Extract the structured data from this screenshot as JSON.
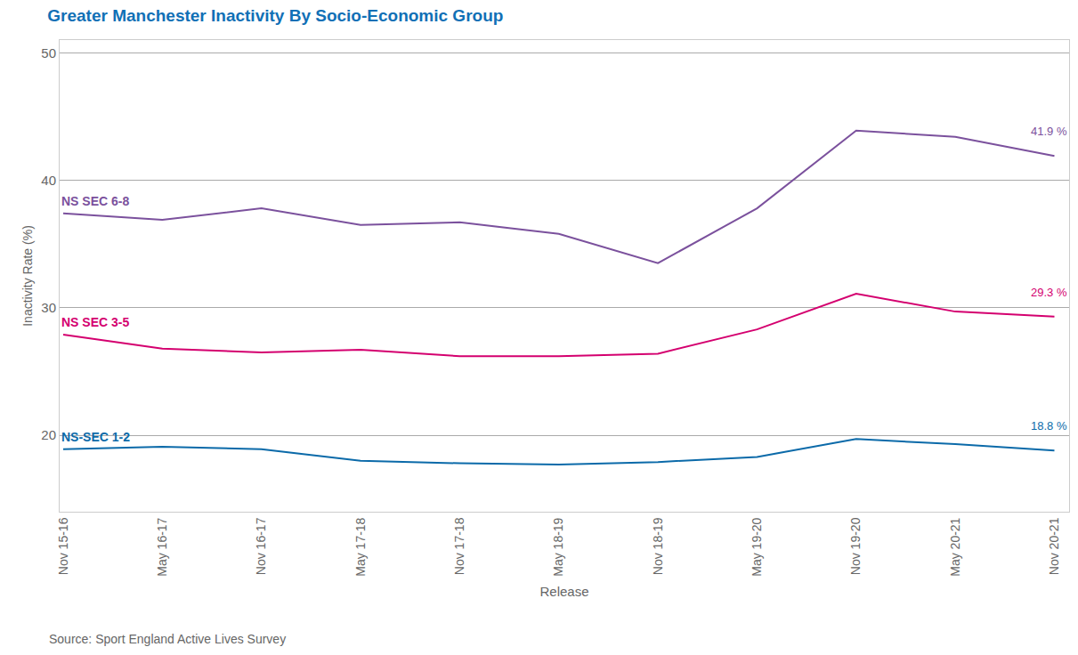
{
  "chart_data": {
    "type": "line",
    "title": "Greater Manchester Inactivity By Socio-Economic Group",
    "x_label": "Release",
    "y_label": "Inactivity Rate (%)",
    "source": "Source: Sport England Active Lives Survey",
    "categories": [
      "Nov 15-16",
      "May 16-17",
      "Nov 16-17",
      "May 17-18",
      "Nov 17-18",
      "May 18-19",
      "Nov 18-19",
      "May 19-20",
      "Nov 19-20",
      "May 20-21",
      "Nov 20-21"
    ],
    "series": [
      {
        "name": "NS SEC 6-8",
        "color": "#7b519d",
        "values": [
          37.4,
          36.9,
          37.8,
          36.5,
          36.7,
          35.8,
          33.5,
          37.8,
          43.9,
          43.4,
          41.9
        ],
        "value_labels": [
          null,
          null,
          null,
          null,
          null,
          null,
          null,
          null,
          null,
          null,
          "41.9 %"
        ]
      },
      {
        "name": "NS SEC 3-5",
        "color": "#d4006f",
        "values": [
          27.9,
          26.8,
          26.5,
          26.7,
          26.2,
          26.2,
          26.4,
          28.3,
          31.1,
          29.7,
          29.3
        ],
        "value_labels": [
          null,
          null,
          null,
          null,
          null,
          null,
          null,
          null,
          null,
          null,
          "29.3 %"
        ]
      },
      {
        "name": "NS-SEC 1-2",
        "color": "#0b6aa9",
        "values": [
          18.9,
          19.1,
          18.9,
          18.0,
          17.8,
          17.7,
          17.9,
          18.3,
          19.7,
          19.3,
          18.8
        ],
        "value_labels": [
          null,
          null,
          null,
          null,
          null,
          null,
          null,
          null,
          null,
          null,
          "18.8 %"
        ]
      }
    ],
    "ylim": [
      14,
      51
    ],
    "yticks": [
      20,
      30,
      40,
      50
    ],
    "grid": true
  }
}
